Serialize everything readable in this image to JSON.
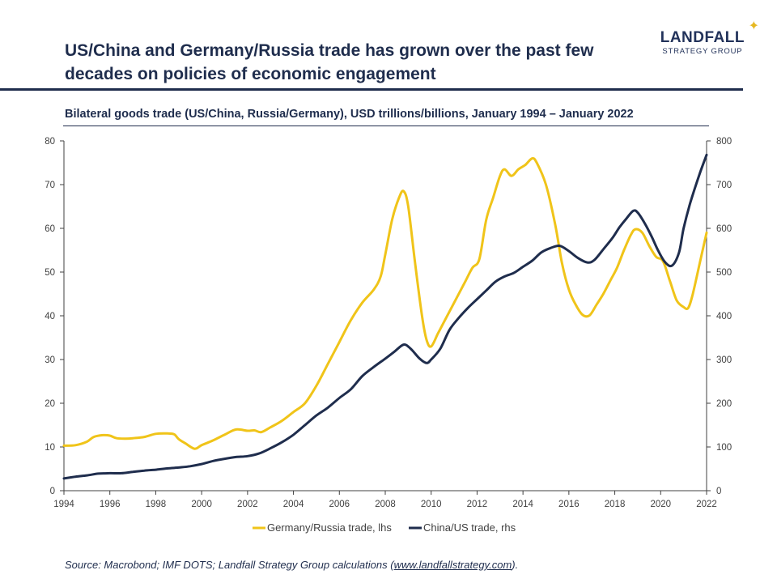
{
  "header": {
    "title_line1": "US/China and Germany/Russia trade has grown over the past few",
    "title_line2": "decades on policies of economic engagement"
  },
  "logo": {
    "name": "LANDFALL",
    "tagline": "STRATEGY GROUP"
  },
  "source": {
    "prefix": "Source: Macrobond; IMF DOTS; Landfall Strategy Group calculations (",
    "link": "www.landfallstrategy.com",
    "suffix": ")."
  },
  "colors": {
    "germany_russia": "#f0c419",
    "china_us": "#1f2d4d",
    "axis": "#404040"
  },
  "chart_data": {
    "type": "line",
    "title": "Bilateral goods trade (US/China, Russia/Germany), USD trillions/billions, January 1994 – January 2022",
    "x_ticks": [
      "1994",
      "1996",
      "1998",
      "2000",
      "2002",
      "2004",
      "2006",
      "2008",
      "2010",
      "2012",
      "2014",
      "2016",
      "2018",
      "2020",
      "2022"
    ],
    "xlim": [
      1994,
      2022
    ],
    "y_left_ticks": [
      "0",
      "10",
      "20",
      "30",
      "40",
      "50",
      "60",
      "70",
      "80"
    ],
    "y_right_ticks": [
      "0",
      "100",
      "200",
      "300",
      "400",
      "500",
      "600",
      "700",
      "800"
    ],
    "ylim_left": [
      0,
      80
    ],
    "ylim_right": [
      0,
      800
    ],
    "grid": false,
    "legend_position": "bottom",
    "series": [
      {
        "name": "Germany/Russia trade, lhs",
        "axis": "left",
        "points": [
          [
            1994.0,
            10.3
          ],
          [
            1994.5,
            10.4
          ],
          [
            1995.0,
            11.2
          ],
          [
            1995.3,
            12.3
          ],
          [
            1995.7,
            12.7
          ],
          [
            1996.0,
            12.6
          ],
          [
            1996.3,
            12.0
          ],
          [
            1996.7,
            11.9
          ],
          [
            1997.0,
            12.0
          ],
          [
            1997.5,
            12.3
          ],
          [
            1998.0,
            13.0
          ],
          [
            1998.5,
            13.1
          ],
          [
            1998.8,
            12.9
          ],
          [
            1999.0,
            11.8
          ],
          [
            1999.3,
            10.8
          ],
          [
            1999.7,
            9.6
          ],
          [
            2000.0,
            10.4
          ],
          [
            2000.5,
            11.5
          ],
          [
            2001.0,
            12.8
          ],
          [
            2001.5,
            14.0
          ],
          [
            2002.0,
            13.7
          ],
          [
            2002.3,
            13.8
          ],
          [
            2002.6,
            13.4
          ],
          [
            2003.0,
            14.5
          ],
          [
            2003.5,
            16.0
          ],
          [
            2004.0,
            18.0
          ],
          [
            2004.5,
            20.0
          ],
          [
            2005.0,
            24.0
          ],
          [
            2005.5,
            29.0
          ],
          [
            2006.0,
            34.0
          ],
          [
            2006.5,
            39.0
          ],
          [
            2007.0,
            43.0
          ],
          [
            2007.5,
            46.0
          ],
          [
            2007.8,
            49.0
          ],
          [
            2008.0,
            54.0
          ],
          [
            2008.3,
            62.0
          ],
          [
            2008.6,
            67.0
          ],
          [
            2008.8,
            68.5
          ],
          [
            2009.0,
            65.0
          ],
          [
            2009.3,
            52.0
          ],
          [
            2009.6,
            40.0
          ],
          [
            2009.8,
            34.5
          ],
          [
            2010.0,
            33.0
          ],
          [
            2010.3,
            36.0
          ],
          [
            2010.6,
            39.0
          ],
          [
            2011.0,
            43.0
          ],
          [
            2011.5,
            48.0
          ],
          [
            2011.8,
            51.0
          ],
          [
            2012.1,
            53.0
          ],
          [
            2012.4,
            62.0
          ],
          [
            2012.7,
            67.0
          ],
          [
            2013.0,
            72.0
          ],
          [
            2013.2,
            73.5
          ],
          [
            2013.5,
            72.0
          ],
          [
            2013.8,
            73.5
          ],
          [
            2014.1,
            74.5
          ],
          [
            2014.4,
            76.0
          ],
          [
            2014.6,
            75.0
          ],
          [
            2015.0,
            70.0
          ],
          [
            2015.4,
            61.0
          ],
          [
            2015.7,
            52.0
          ],
          [
            2016.0,
            46.0
          ],
          [
            2016.3,
            42.5
          ],
          [
            2016.6,
            40.2
          ],
          [
            2016.9,
            40.1
          ],
          [
            2017.2,
            42.5
          ],
          [
            2017.5,
            45.0
          ],
          [
            2017.8,
            48.0
          ],
          [
            2018.1,
            51.0
          ],
          [
            2018.4,
            55.0
          ],
          [
            2018.7,
            58.5
          ],
          [
            2018.9,
            59.8
          ],
          [
            2019.2,
            59.0
          ],
          [
            2019.5,
            56.0
          ],
          [
            2019.8,
            53.5
          ],
          [
            2020.1,
            52.5
          ],
          [
            2020.4,
            48.0
          ],
          [
            2020.7,
            43.5
          ],
          [
            2021.0,
            42.0
          ],
          [
            2021.2,
            41.8
          ],
          [
            2021.4,
            45.0
          ],
          [
            2021.7,
            52.0
          ],
          [
            2022.0,
            59.0
          ]
        ]
      },
      {
        "name": "China/US trade, rhs",
        "axis": "right",
        "points": [
          [
            1994.0,
            28
          ],
          [
            1994.5,
            32
          ],
          [
            1995.0,
            35
          ],
          [
            1995.5,
            39
          ],
          [
            1996.0,
            40
          ],
          [
            1996.5,
            40
          ],
          [
            1997.0,
            43
          ],
          [
            1997.5,
            46
          ],
          [
            1998.0,
            48
          ],
          [
            1998.5,
            51
          ],
          [
            1999.0,
            53
          ],
          [
            1999.5,
            56
          ],
          [
            2000.0,
            61
          ],
          [
            2000.5,
            68
          ],
          [
            2001.0,
            73
          ],
          [
            2001.5,
            77
          ],
          [
            2002.0,
            79
          ],
          [
            2002.5,
            85
          ],
          [
            2003.0,
            97
          ],
          [
            2003.5,
            111
          ],
          [
            2004.0,
            128
          ],
          [
            2004.5,
            150
          ],
          [
            2005.0,
            172
          ],
          [
            2005.5,
            190
          ],
          [
            2006.0,
            212
          ],
          [
            2006.5,
            232
          ],
          [
            2007.0,
            262
          ],
          [
            2007.5,
            283
          ],
          [
            2008.0,
            302
          ],
          [
            2008.4,
            318
          ],
          [
            2008.8,
            334
          ],
          [
            2009.1,
            325
          ],
          [
            2009.5,
            302
          ],
          [
            2009.8,
            292
          ],
          [
            2010.0,
            300
          ],
          [
            2010.4,
            325
          ],
          [
            2010.8,
            368
          ],
          [
            2011.2,
            395
          ],
          [
            2011.6,
            418
          ],
          [
            2012.0,
            438
          ],
          [
            2012.4,
            458
          ],
          [
            2012.8,
            478
          ],
          [
            2013.2,
            490
          ],
          [
            2013.6,
            498
          ],
          [
            2014.0,
            512
          ],
          [
            2014.4,
            526
          ],
          [
            2014.8,
            545
          ],
          [
            2015.2,
            555
          ],
          [
            2015.6,
            560
          ],
          [
            2016.0,
            548
          ],
          [
            2016.4,
            532
          ],
          [
            2016.8,
            522
          ],
          [
            2017.1,
            527
          ],
          [
            2017.5,
            552
          ],
          [
            2017.9,
            578
          ],
          [
            2018.2,
            602
          ],
          [
            2018.5,
            622
          ],
          [
            2018.8,
            640
          ],
          [
            2019.0,
            636
          ],
          [
            2019.3,
            612
          ],
          [
            2019.6,
            582
          ],
          [
            2019.9,
            548
          ],
          [
            2020.2,
            522
          ],
          [
            2020.5,
            515
          ],
          [
            2020.8,
            545
          ],
          [
            2021.0,
            600
          ],
          [
            2021.3,
            660
          ],
          [
            2021.7,
            725
          ],
          [
            2022.0,
            768
          ]
        ]
      }
    ]
  }
}
